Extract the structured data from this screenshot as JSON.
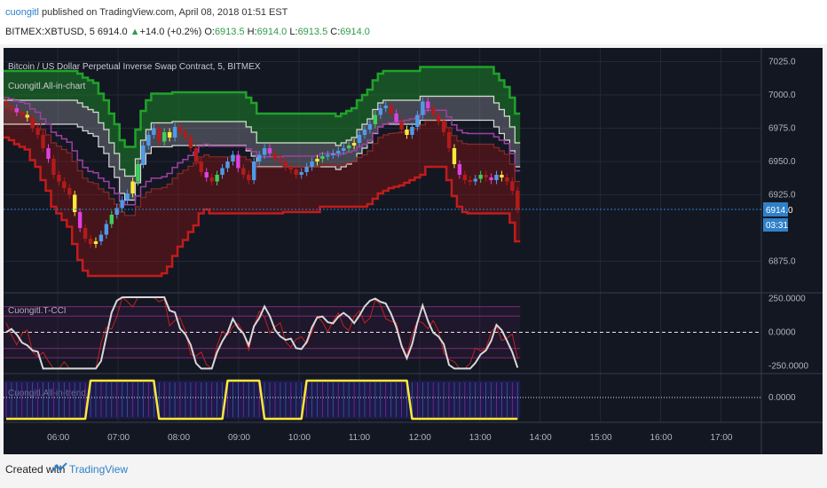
{
  "header": {
    "author": "cuongitl",
    "published_text": " published on TradingView.com, April 08, 2018 01:51 EST",
    "symbol": "BITMEX:XBTUSD, 5",
    "last": "6914.0",
    "arrow": "▲",
    "change": "+14.0 (+0.2%)",
    "o_label": "O:",
    "o_val": "6913.5",
    "h_label": "H:",
    "h_val": "6914.0",
    "l_label": "L:",
    "l_val": "6913.5",
    "c_label": "C:",
    "c_val": "6914.0"
  },
  "footer": {
    "created_with": "Created with",
    "brand": "TradingView"
  },
  "colors": {
    "background": "#131722",
    "bull": "#4f9be8",
    "bear": "#b31b1b",
    "magenta": "#e040e0",
    "yellow": "#ffe83a",
    "green_band": "#1fa32a",
    "red_band": "#c21c1c",
    "white_band": "#d8d8d8",
    "price_line": "#2f80c9"
  },
  "chart_data": [
    {
      "type": "candlestick",
      "title": "Bitcoin / US Dollar Perpetual Inverse Swap Contract, 5, BITMEX",
      "indicator": "Cuongitl.All-in-chart",
      "y_ticks": [
        "7025.0",
        "7000.0",
        "6975.0",
        "6950.0",
        "6925.0",
        "6875.0"
      ],
      "y_tick_values": [
        7025,
        7000,
        6975,
        6950,
        6925,
        6875
      ],
      "ylim": [
        6852,
        7034
      ],
      "last_price_label": "6914.0",
      "countdown_label": "03:31",
      "x_ticks": [
        "06:00",
        "07:00",
        "08:00",
        "09:00",
        "10:00",
        "11:00",
        "12:00",
        "13:00",
        "14:00",
        "15:00",
        "16:00",
        "17:00"
      ],
      "x_tick_hours": [
        6,
        7,
        8,
        9,
        10,
        11,
        12,
        13,
        14,
        15,
        16,
        17
      ],
      "x_start_hour": 5.1,
      "x_end_hour": 17.67,
      "candles_end_hour": 13.67,
      "candle_closes_approx": [
        6992,
        6990,
        6987,
        6985,
        6983,
        6975,
        6970,
        6960,
        6952,
        6940,
        6935,
        6930,
        6925,
        6912,
        6900,
        6892,
        6888,
        6890,
        6895,
        6903,
        6910,
        6915,
        6921,
        6926,
        6935,
        6948,
        6962,
        6970,
        6975,
        6965,
        6972,
        6968,
        6976,
        6972,
        6968,
        6960,
        6950,
        6942,
        6938,
        6935,
        6940,
        6945,
        6950,
        6955,
        6945,
        6940,
        6936,
        6950,
        6955,
        6960,
        6956,
        6952,
        6950,
        6946,
        6944,
        6940,
        6942,
        6946,
        6950,
        6952,
        6954,
        6955,
        6956,
        6958,
        6960,
        6962,
        6964,
        6970,
        6974,
        6978,
        6985,
        6990,
        6992,
        6986,
        6980,
        6974,
        6970,
        6976,
        6985,
        6995,
        6990,
        6985,
        6980,
        6972,
        6960,
        6948,
        6940,
        6936,
        6935,
        6937,
        6940,
        6938,
        6936,
        6940,
        6938,
        6935,
        6928,
        6914
      ]
    },
    {
      "type": "line",
      "indicator": "Cuongitl.T-CCI",
      "y_ticks": [
        "250.0000",
        "0.0000",
        "-250.0000"
      ],
      "y_tick_values": [
        250,
        0,
        -250
      ],
      "ylim": [
        -300,
        280
      ]
    },
    {
      "type": "line",
      "indicator": "Cuongitl.All-in-trend",
      "y_ticks": [
        "0.0000"
      ],
      "y_tick_values": [
        0
      ]
    }
  ]
}
